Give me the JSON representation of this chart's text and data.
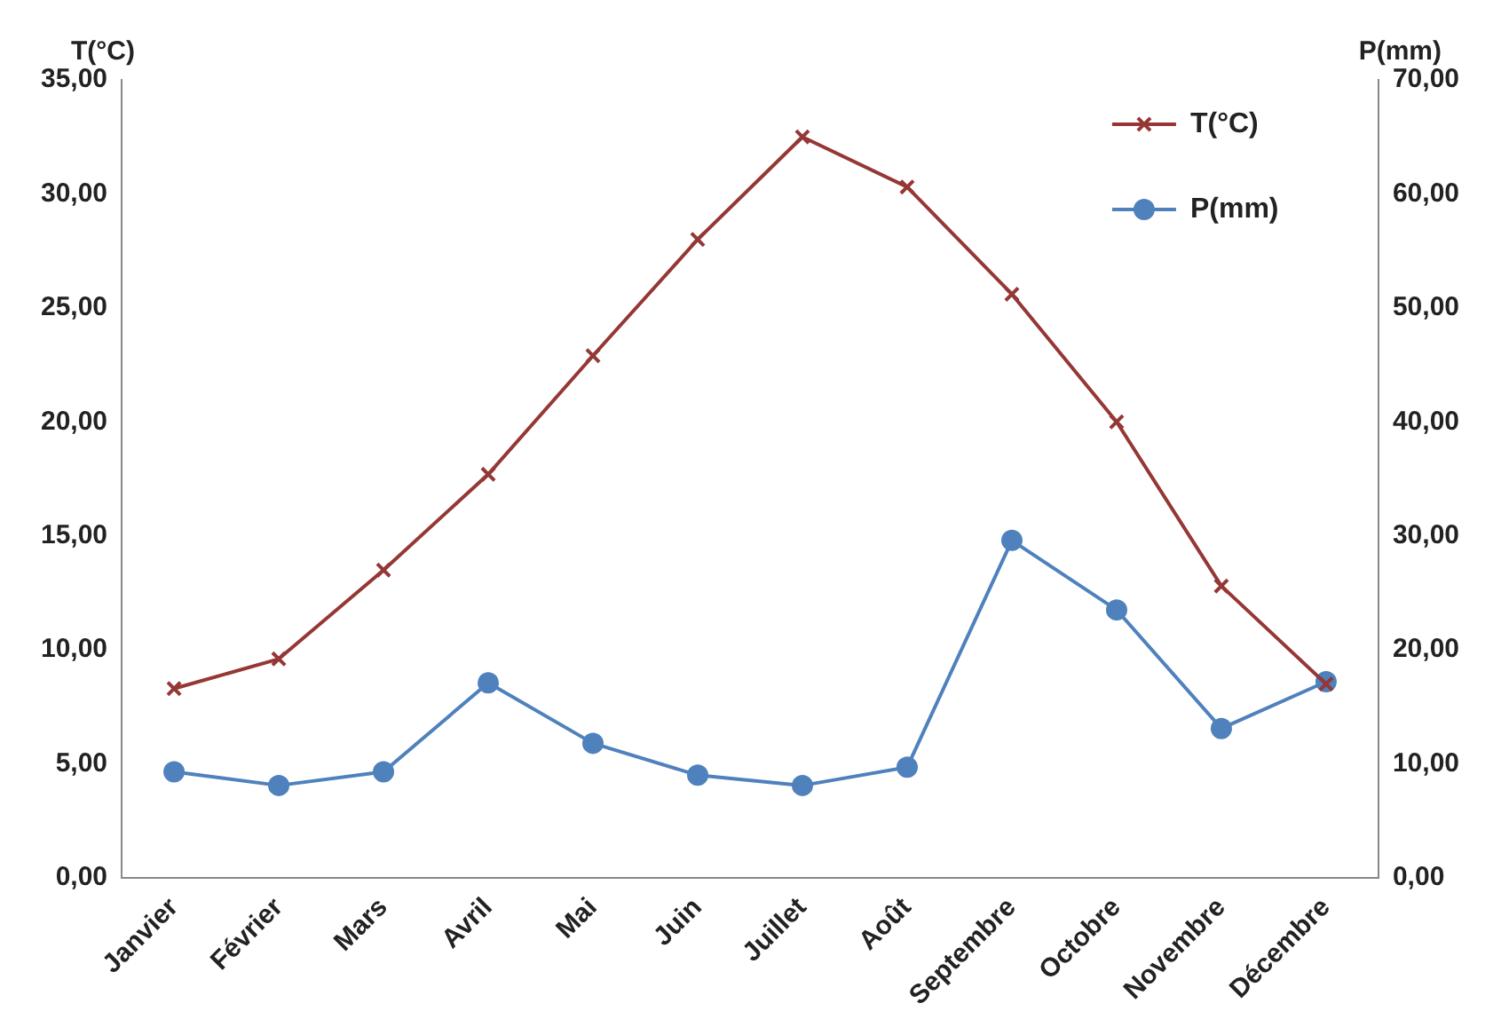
{
  "chart_data": {
    "type": "line",
    "ylabel": "T(°C)",
    "y2label": "P(mm)",
    "categories": [
      "Janvier",
      "Février",
      "Mars",
      "Avril",
      "Mai",
      "Juin",
      "Juillet",
      "Août",
      "Septembre",
      "Octobre",
      "Novembre",
      "Décembre"
    ],
    "series": [
      {
        "name": "T(°C)",
        "color": "#953735",
        "marker": "cross",
        "values": [
          8.3,
          9.6,
          13.5,
          17.7,
          22.9,
          28.0,
          32.5,
          30.3,
          25.6,
          20.0,
          12.8,
          8.5
        ]
      },
      {
        "name": "P(mm)",
        "color": "#4f81bd",
        "marker": "circle",
        "axis": "y2",
        "values": [
          9.3,
          8.1,
          9.3,
          17.1,
          11.8,
          9.0,
          8.1,
          9.7,
          29.6,
          23.5,
          13.1,
          17.2
        ]
      }
    ],
    "ylim": [
      0,
      35
    ],
    "yticks": [
      {
        "value": 0,
        "label": "0,00"
      },
      {
        "value": 5,
        "label": "5,00"
      },
      {
        "value": 10,
        "label": "10,00"
      },
      {
        "value": 15,
        "label": "15,00"
      },
      {
        "value": 20,
        "label": "20,00"
      },
      {
        "value": 25,
        "label": "25,00"
      },
      {
        "value": 30,
        "label": "30,00"
      },
      {
        "value": 35,
        "label": "35,00"
      }
    ],
    "y2lim": [
      0,
      70
    ],
    "y2ticks": [
      {
        "value": 0,
        "label": "0,00"
      },
      {
        "value": 10,
        "label": "10,00"
      },
      {
        "value": 20,
        "label": "20,00"
      },
      {
        "value": 30,
        "label": "30,00"
      },
      {
        "value": 40,
        "label": "40,00"
      },
      {
        "value": 50,
        "label": "50,00"
      },
      {
        "value": 60,
        "label": "60,00"
      },
      {
        "value": 70,
        "label": "70,00"
      }
    ],
    "grid": false,
    "legend": "top right",
    "line_style": "solid"
  }
}
